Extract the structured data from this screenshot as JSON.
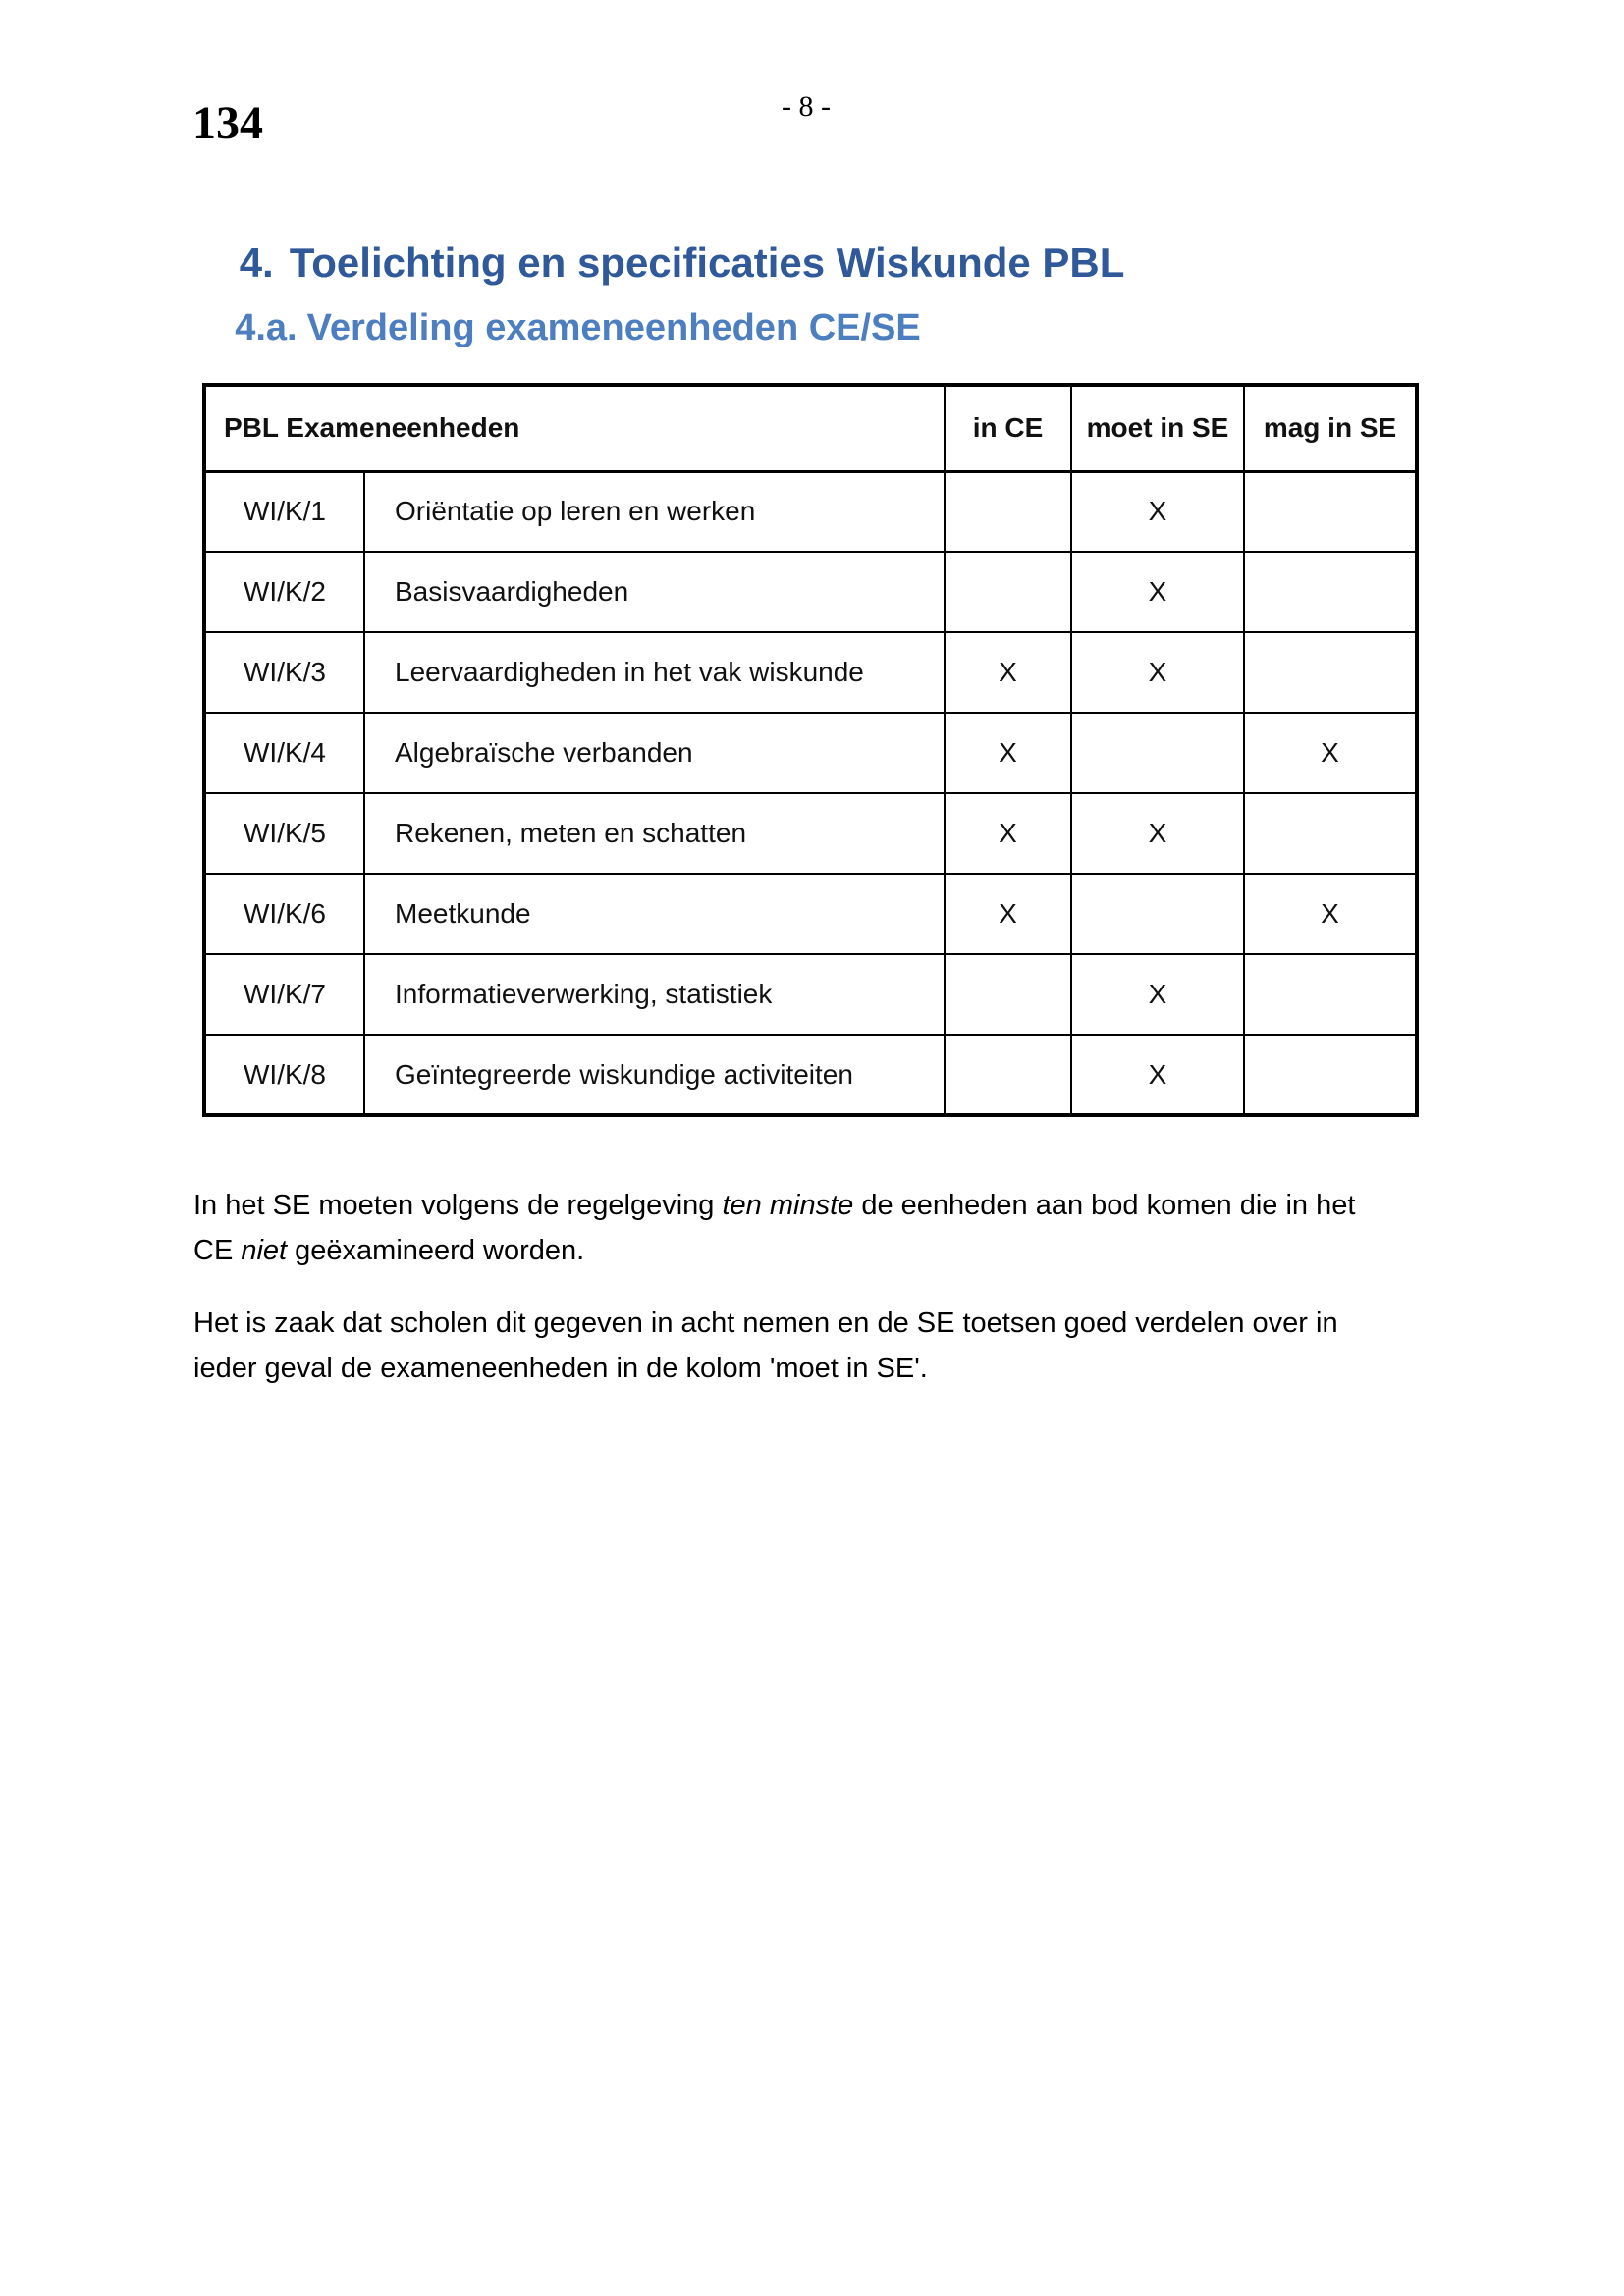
{
  "page": {
    "number": "134",
    "running_head": "- 8 -"
  },
  "headings": {
    "h1": {
      "num": "4.",
      "text": "Toelichting en specificaties Wiskunde PBL",
      "color": "#30599a"
    },
    "h2": {
      "num": "4.a.",
      "text": "Verdeling exameneenheden CE/SE",
      "color": "#4c7ec0"
    }
  },
  "table": {
    "header": {
      "title": "PBL Exameneenheden",
      "ce": "in CE",
      "moet": "moet in SE",
      "mag": "mag in SE"
    },
    "rows": [
      {
        "code": "WI/K/1",
        "desc": "Oriëntatie op leren en werken",
        "ce": "",
        "moet": "X",
        "mag": ""
      },
      {
        "code": "WI/K/2",
        "desc": "Basisvaardigheden",
        "ce": "",
        "moet": "X",
        "mag": ""
      },
      {
        "code": "WI/K/3",
        "desc": "Leervaardigheden in het vak wiskunde",
        "ce": "X",
        "moet": "X",
        "mag": ""
      },
      {
        "code": "WI/K/4",
        "desc": "Algebraïsche verbanden",
        "ce": "X",
        "moet": "",
        "mag": "X"
      },
      {
        "code": "WI/K/5",
        "desc": "Rekenen, meten en schatten",
        "ce": "X",
        "moet": "X",
        "mag": ""
      },
      {
        "code": "WI/K/6",
        "desc": "Meetkunde",
        "ce": "X",
        "moet": "",
        "mag": "X"
      },
      {
        "code": "WI/K/7",
        "desc": "Informatieverwerking, statistiek",
        "ce": "",
        "moet": "X",
        "mag": ""
      },
      {
        "code": "WI/K/8",
        "desc": "Geïntegreerde wiskundige activiteiten",
        "ce": "",
        "moet": "X",
        "mag": ""
      }
    ]
  },
  "paragraphs": {
    "p1": {
      "l1a": "In het SE moeten volgens de regelgeving ",
      "l1b": "ten minste",
      "l1c": " de eenheden aan bod komen die in het",
      "l2a": "CE ",
      "l2b": "niet",
      "l2c": " geëxamineerd worden."
    },
    "p2": {
      "l1": "Het is zaak dat scholen dit gegeven in acht nemen en de SE toetsen goed verdelen over in",
      "l2": "ieder geval de exameneenheden in de kolom 'moet in SE'."
    }
  }
}
